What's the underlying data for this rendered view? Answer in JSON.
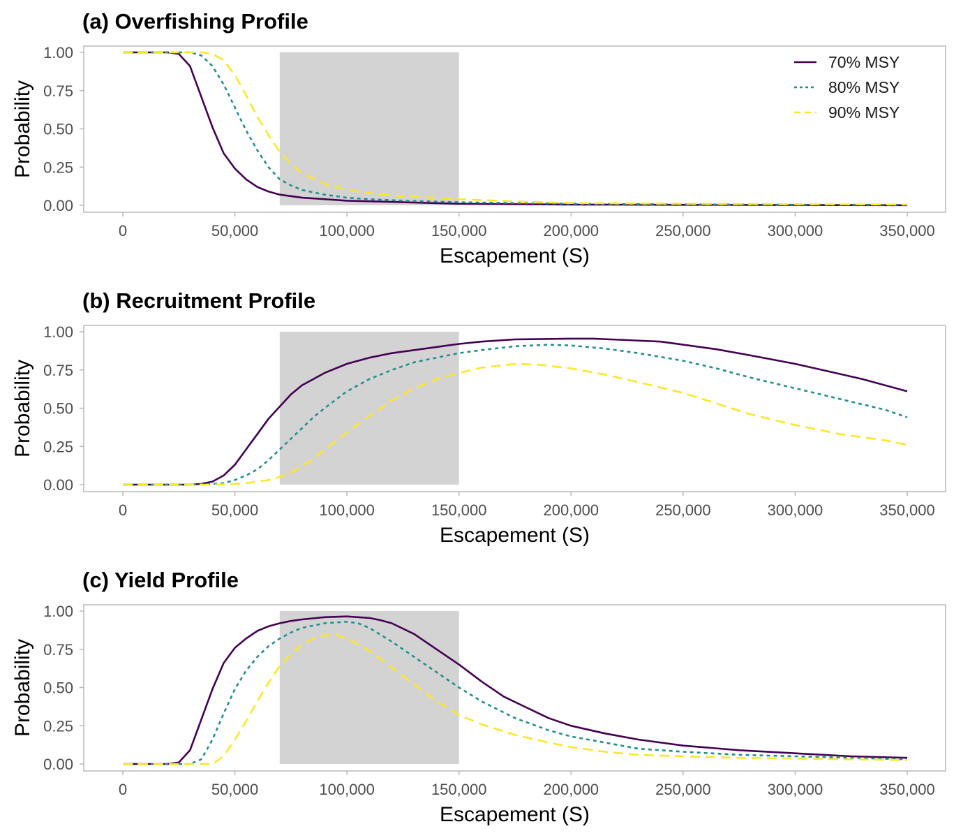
{
  "colors": {
    "70": "#440154",
    "80": "#21908C",
    "90": "#FDE725",
    "shade": "#D3D3D3",
    "frame": "#B3B3B3",
    "tick_text": "#4D4D4D"
  },
  "chart_data": [
    {
      "type": "line",
      "title": "(a) Overfishing Profile",
      "xlabel": "Escapement (S)",
      "ylabel": "Probability",
      "xlim": [
        0,
        350000
      ],
      "ylim": [
        0,
        1
      ],
      "x_ticks": [
        0,
        50000,
        100000,
        150000,
        200000,
        250000,
        300000,
        350000
      ],
      "x_tick_labels": [
        "0",
        "50,000",
        "100,000",
        "150,000",
        "200,000",
        "250,000",
        "300,000",
        "350,000"
      ],
      "y_ticks": [
        0,
        0.25,
        0.5,
        0.75,
        1
      ],
      "y_tick_labels": [
        "0.00",
        "0.25",
        "0.50",
        "0.75",
        "1.00"
      ],
      "shaded_range": [
        70000,
        150000
      ],
      "grid": false,
      "legend": "top-right",
      "series": [
        {
          "name": "70% MSY",
          "style": "solid",
          "x": [
            0,
            10000,
            20000,
            25000,
            30000,
            35000,
            40000,
            45000,
            50000,
            55000,
            60000,
            65000,
            70000,
            80000,
            90000,
            100000,
            125000,
            150000,
            200000,
            250000,
            300000,
            350000
          ],
          "values": [
            1,
            1,
            1,
            0.99,
            0.91,
            0.71,
            0.51,
            0.34,
            0.24,
            0.17,
            0.12,
            0.09,
            0.07,
            0.05,
            0.04,
            0.03,
            0.02,
            0.01,
            0.005,
            0.003,
            0.002,
            0.001
          ]
        },
        {
          "name": "80% MSY",
          "style": "dotted",
          "x": [
            0,
            20000,
            30000,
            35000,
            40000,
            45000,
            50000,
            55000,
            60000,
            65000,
            70000,
            75000,
            80000,
            90000,
            100000,
            110000,
            125000,
            150000,
            200000,
            250000,
            300000,
            350000
          ],
          "values": [
            1,
            1,
            1,
            0.98,
            0.91,
            0.79,
            0.64,
            0.49,
            0.36,
            0.25,
            0.17,
            0.13,
            0.1,
            0.07,
            0.05,
            0.04,
            0.03,
            0.02,
            0.01,
            0.006,
            0.004,
            0.003
          ]
        },
        {
          "name": "90% MSY",
          "style": "dashed",
          "x": [
            0,
            20000,
            30000,
            35000,
            40000,
            45000,
            50000,
            55000,
            60000,
            65000,
            70000,
            75000,
            80000,
            90000,
            100000,
            110000,
            125000,
            150000,
            175000,
            200000,
            250000,
            300000,
            350000
          ],
          "values": [
            1,
            1,
            1,
            1,
            0.99,
            0.95,
            0.85,
            0.72,
            0.58,
            0.46,
            0.35,
            0.27,
            0.21,
            0.14,
            0.1,
            0.08,
            0.06,
            0.04,
            0.025,
            0.015,
            0.01,
            0.007,
            0.005
          ]
        }
      ]
    },
    {
      "type": "line",
      "title": "(b) Recruitment Profile",
      "xlabel": "Escapement (S)",
      "ylabel": "Probability",
      "xlim": [
        0,
        350000
      ],
      "ylim": [
        0,
        1
      ],
      "x_ticks": [
        0,
        50000,
        100000,
        150000,
        200000,
        250000,
        300000,
        350000
      ],
      "x_tick_labels": [
        "0",
        "50,000",
        "100,000",
        "150,000",
        "200,000",
        "250,000",
        "300,000",
        "350,000"
      ],
      "y_ticks": [
        0,
        0.25,
        0.5,
        0.75,
        1
      ],
      "y_tick_labels": [
        "0.00",
        "0.25",
        "0.50",
        "0.75",
        "1.00"
      ],
      "shaded_range": [
        70000,
        150000
      ],
      "grid": false,
      "series": [
        {
          "name": "70% MSY",
          "style": "solid",
          "x": [
            0,
            20000,
            30000,
            35000,
            40000,
            45000,
            50000,
            55000,
            60000,
            65000,
            70000,
            75000,
            80000,
            85000,
            90000,
            100000,
            110000,
            120000,
            130000,
            140000,
            150000,
            160000,
            175000,
            200000,
            210000,
            225000,
            240000,
            250000,
            265000,
            280000,
            300000,
            315000,
            330000,
            340000,
            350000
          ],
          "values": [
            0,
            0,
            0,
            0.005,
            0.02,
            0.06,
            0.13,
            0.23,
            0.33,
            0.43,
            0.51,
            0.59,
            0.65,
            0.69,
            0.73,
            0.79,
            0.83,
            0.86,
            0.88,
            0.9,
            0.92,
            0.935,
            0.95,
            0.955,
            0.955,
            0.945,
            0.935,
            0.915,
            0.885,
            0.845,
            0.79,
            0.74,
            0.69,
            0.65,
            0.61
          ]
        },
        {
          "name": "80% MSY",
          "style": "dotted",
          "x": [
            0,
            20000,
            30000,
            40000,
            45000,
            50000,
            55000,
            60000,
            65000,
            70000,
            75000,
            80000,
            85000,
            90000,
            100000,
            110000,
            120000,
            130000,
            140000,
            150000,
            160000,
            175000,
            190000,
            200000,
            215000,
            230000,
            250000,
            265000,
            280000,
            300000,
            320000,
            340000,
            350000
          ],
          "values": [
            0,
            0,
            0,
            0.005,
            0.01,
            0.03,
            0.06,
            0.1,
            0.16,
            0.23,
            0.3,
            0.37,
            0.44,
            0.5,
            0.61,
            0.69,
            0.75,
            0.8,
            0.83,
            0.86,
            0.88,
            0.905,
            0.915,
            0.91,
            0.89,
            0.86,
            0.81,
            0.76,
            0.7,
            0.63,
            0.56,
            0.49,
            0.44
          ]
        },
        {
          "name": "90% MSY",
          "style": "dashed",
          "x": [
            0,
            40000,
            50000,
            55000,
            60000,
            65000,
            70000,
            75000,
            80000,
            85000,
            90000,
            100000,
            110000,
            120000,
            130000,
            140000,
            150000,
            160000,
            175000,
            185000,
            200000,
            215000,
            230000,
            250000,
            265000,
            280000,
            300000,
            320000,
            340000,
            350000
          ],
          "values": [
            0,
            0,
            0.005,
            0.01,
            0.02,
            0.03,
            0.05,
            0.08,
            0.12,
            0.17,
            0.23,
            0.34,
            0.45,
            0.55,
            0.63,
            0.69,
            0.73,
            0.765,
            0.79,
            0.785,
            0.76,
            0.72,
            0.67,
            0.6,
            0.53,
            0.46,
            0.39,
            0.33,
            0.29,
            0.26
          ]
        }
      ]
    },
    {
      "type": "line",
      "title": "(c) Yield Profile",
      "xlabel": "Escapement (S)",
      "ylabel": "Probability",
      "xlim": [
        0,
        350000
      ],
      "ylim": [
        0,
        1
      ],
      "x_ticks": [
        0,
        50000,
        100000,
        150000,
        200000,
        250000,
        300000,
        350000
      ],
      "x_tick_labels": [
        "0",
        "50,000",
        "100,000",
        "150,000",
        "200,000",
        "250,000",
        "300,000",
        "350,000"
      ],
      "y_ticks": [
        0,
        0.25,
        0.5,
        0.75,
        1
      ],
      "y_tick_labels": [
        "0.00",
        "0.25",
        "0.50",
        "0.75",
        "1.00"
      ],
      "shaded_range": [
        70000,
        150000
      ],
      "grid": false,
      "series": [
        {
          "name": "70% MSY",
          "style": "solid",
          "x": [
            0,
            20000,
            25000,
            30000,
            35000,
            40000,
            45000,
            50000,
            55000,
            60000,
            65000,
            70000,
            75000,
            80000,
            90000,
            100000,
            110000,
            115000,
            120000,
            130000,
            140000,
            150000,
            160000,
            170000,
            180000,
            190000,
            200000,
            215000,
            230000,
            250000,
            275000,
            300000,
            325000,
            350000
          ],
          "values": [
            0,
            0,
            0.01,
            0.09,
            0.29,
            0.49,
            0.66,
            0.76,
            0.82,
            0.87,
            0.9,
            0.92,
            0.935,
            0.945,
            0.96,
            0.965,
            0.955,
            0.94,
            0.92,
            0.85,
            0.75,
            0.65,
            0.54,
            0.44,
            0.37,
            0.3,
            0.25,
            0.2,
            0.16,
            0.12,
            0.09,
            0.07,
            0.05,
            0.04
          ]
        },
        {
          "name": "80% MSY",
          "style": "dotted",
          "x": [
            0,
            30000,
            35000,
            40000,
            45000,
            50000,
            55000,
            60000,
            65000,
            70000,
            75000,
            80000,
            90000,
            100000,
            105000,
            110000,
            120000,
            130000,
            140000,
            150000,
            160000,
            175000,
            190000,
            200000,
            215000,
            230000,
            250000,
            275000,
            300000,
            325000,
            350000
          ],
          "values": [
            0,
            0,
            0.03,
            0.16,
            0.33,
            0.49,
            0.61,
            0.7,
            0.77,
            0.82,
            0.86,
            0.89,
            0.92,
            0.93,
            0.92,
            0.89,
            0.8,
            0.7,
            0.6,
            0.5,
            0.41,
            0.3,
            0.22,
            0.18,
            0.14,
            0.1,
            0.08,
            0.06,
            0.05,
            0.04,
            0.03
          ]
        },
        {
          "name": "90% MSY",
          "style": "dashed",
          "x": [
            0,
            40000,
            45000,
            50000,
            55000,
            60000,
            65000,
            70000,
            75000,
            80000,
            85000,
            90000,
            95000,
            100000,
            110000,
            120000,
            130000,
            140000,
            150000,
            160000,
            175000,
            190000,
            200000,
            215000,
            230000,
            250000,
            275000,
            300000,
            325000,
            350000
          ],
          "values": [
            0,
            0,
            0.05,
            0.16,
            0.28,
            0.41,
            0.53,
            0.64,
            0.72,
            0.78,
            0.82,
            0.84,
            0.845,
            0.82,
            0.74,
            0.63,
            0.52,
            0.41,
            0.32,
            0.26,
            0.19,
            0.14,
            0.11,
            0.08,
            0.06,
            0.05,
            0.04,
            0.035,
            0.03,
            0.025
          ]
        }
      ]
    }
  ]
}
